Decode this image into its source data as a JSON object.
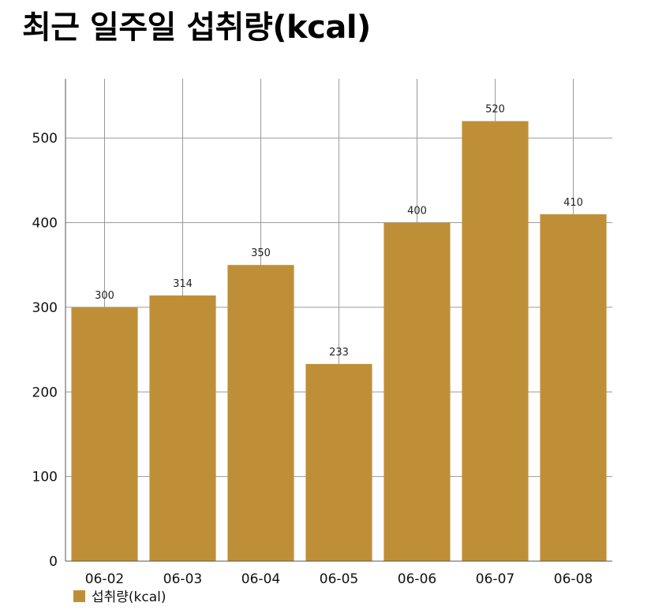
{
  "chart_data": {
    "type": "bar",
    "title": "최근 일주일 섭취량(kcal)",
    "categories": [
      "06-02",
      "06-03",
      "06-04",
      "06-05",
      "06-06",
      "06-07",
      "06-08"
    ],
    "series": [
      {
        "name": "섭취량(kcal)",
        "values": [
          300,
          314,
          350,
          233,
          400,
          520,
          410
        ],
        "color": "#bf8f38"
      }
    ],
    "xlabel": "",
    "ylabel": "",
    "ylim": [
      0,
      570
    ],
    "yticks": [
      0,
      100,
      200,
      300,
      400,
      500
    ],
    "grid": true,
    "data_labels": true,
    "legend": "bottom-left"
  }
}
